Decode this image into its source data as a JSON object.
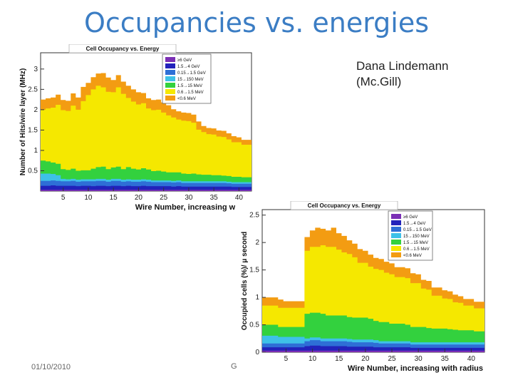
{
  "slide": {
    "title": "Occupancies vs. energies",
    "author_line1": "Dana Lindemann",
    "author_line2": "(Mc.Gill)",
    "footer_date": "01/10/2010",
    "footer_mid": "G"
  },
  "chart_data": [
    {
      "type": "area",
      "stacked": true,
      "title": "Cell Occupancy vs. Energy",
      "xlabel": "Wire Number, increasing with r",
      "ylabel": "Number of Hits/wire layer (MHz)",
      "xlim": [
        0.5,
        42.5
      ],
      "ylim": [
        0,
        3.4
      ],
      "xticks": [
        5,
        10,
        15,
        20,
        25,
        30,
        35,
        40
      ],
      "yticks": [
        0.5,
        1,
        1.5,
        2,
        2.5,
        3
      ],
      "legend": "top-center",
      "x": [
        1,
        2,
        3,
        4,
        5,
        6,
        7,
        8,
        9,
        10,
        11,
        12,
        13,
        14,
        15,
        16,
        17,
        18,
        19,
        20,
        21,
        22,
        23,
        24,
        25,
        26,
        27,
        28,
        29,
        30,
        31,
        32,
        33,
        34,
        35,
        36,
        37,
        38,
        39,
        40,
        41,
        42
      ],
      "series": [
        {
          "name": "≥6 GeV",
          "color": "#7b2fb5",
          "values": [
            0.03,
            0.03,
            0.03,
            0.03,
            0.03,
            0.03,
            0.03,
            0.03,
            0.03,
            0.03,
            0.03,
            0.03,
            0.03,
            0.03,
            0.03,
            0.03,
            0.03,
            0.03,
            0.03,
            0.03,
            0.03,
            0.03,
            0.03,
            0.03,
            0.03,
            0.03,
            0.03,
            0.03,
            0.03,
            0.03,
            0.03,
            0.03,
            0.03,
            0.03,
            0.03,
            0.03,
            0.03,
            0.03,
            0.03,
            0.03,
            0.03,
            0.03
          ]
        },
        {
          "name": "1.5→4 GeV",
          "color": "#2222bb",
          "values": [
            0.1,
            0.1,
            0.11,
            0.1,
            0.1,
            0.1,
            0.1,
            0.09,
            0.1,
            0.1,
            0.09,
            0.1,
            0.1,
            0.09,
            0.1,
            0.1,
            0.09,
            0.1,
            0.09,
            0.09,
            0.1,
            0.09,
            0.09,
            0.09,
            0.09,
            0.09,
            0.08,
            0.09,
            0.08,
            0.08,
            0.08,
            0.08,
            0.08,
            0.08,
            0.08,
            0.08,
            0.08,
            0.08,
            0.07,
            0.07,
            0.07,
            0.07
          ]
        },
        {
          "name": "0.15→1.5 GeV",
          "color": "#2e6fd6",
          "values": [
            0.12,
            0.12,
            0.12,
            0.12,
            0.11,
            0.11,
            0.12,
            0.11,
            0.11,
            0.11,
            0.12,
            0.12,
            0.12,
            0.11,
            0.12,
            0.12,
            0.11,
            0.11,
            0.11,
            0.11,
            0.11,
            0.11,
            0.1,
            0.1,
            0.1,
            0.1,
            0.1,
            0.1,
            0.09,
            0.09,
            0.09,
            0.09,
            0.09,
            0.09,
            0.09,
            0.09,
            0.09,
            0.08,
            0.08,
            0.08,
            0.08,
            0.08
          ]
        },
        {
          "name": "15→150 MeV",
          "color": "#3ec1e8",
          "values": [
            0.18,
            0.18,
            0.16,
            0.14,
            0.06,
            0.05,
            0.05,
            0.05,
            0.05,
            0.05,
            0.05,
            0.05,
            0.05,
            0.05,
            0.05,
            0.05,
            0.05,
            0.05,
            0.05,
            0.05,
            0.05,
            0.05,
            0.04,
            0.04,
            0.04,
            0.04,
            0.04,
            0.04,
            0.04,
            0.04,
            0.04,
            0.04,
            0.04,
            0.04,
            0.04,
            0.04,
            0.04,
            0.04,
            0.04,
            0.04,
            0.04,
            0.04
          ]
        },
        {
          "name": "1.5→15 MeV",
          "color": "#33d13e",
          "values": [
            0.32,
            0.3,
            0.28,
            0.28,
            0.24,
            0.23,
            0.25,
            0.22,
            0.22,
            0.22,
            0.26,
            0.29,
            0.3,
            0.26,
            0.28,
            0.3,
            0.26,
            0.3,
            0.27,
            0.25,
            0.27,
            0.25,
            0.23,
            0.24,
            0.22,
            0.2,
            0.21,
            0.2,
            0.19,
            0.18,
            0.19,
            0.17,
            0.16,
            0.16,
            0.15,
            0.15,
            0.14,
            0.14,
            0.13,
            0.13,
            0.12,
            0.12
          ]
        },
        {
          "name": "0.6→1.5 MeV",
          "color": "#f5e800",
          "values": [
            1.25,
            1.3,
            1.35,
            1.45,
            1.45,
            1.45,
            1.55,
            1.5,
            1.7,
            1.85,
            1.95,
            2.0,
            1.95,
            1.9,
            1.85,
            1.95,
            1.85,
            1.7,
            1.65,
            1.6,
            1.6,
            1.5,
            1.5,
            1.5,
            1.45,
            1.4,
            1.35,
            1.3,
            1.3,
            1.3,
            1.25,
            1.1,
            1.05,
            1.0,
            1.0,
            0.95,
            0.95,
            0.9,
            0.85,
            0.85,
            0.8,
            0.8
          ]
        },
        {
          "name": "<0.6 MeV",
          "color": "#f39c12",
          "values": [
            0.25,
            0.25,
            0.25,
            0.25,
            0.25,
            0.25,
            0.3,
            0.3,
            0.35,
            0.3,
            0.3,
            0.3,
            0.35,
            0.35,
            0.3,
            0.3,
            0.3,
            0.3,
            0.3,
            0.3,
            0.25,
            0.25,
            0.25,
            0.25,
            0.25,
            0.25,
            0.2,
            0.2,
            0.2,
            0.2,
            0.2,
            0.2,
            0.15,
            0.15,
            0.15,
            0.15,
            0.15,
            0.15,
            0.15,
            0.12,
            0.12,
            0.12
          ]
        }
      ]
    },
    {
      "type": "area",
      "stacked": true,
      "title": "Cell Occupancy vs. Energy",
      "xlabel": "Wire Number, increasing with radius",
      "ylabel": "Occupied cells (%)/ μ second",
      "xlim": [
        0.5,
        42.5
      ],
      "ylim": [
        0,
        2.6
      ],
      "xticks": [
        5,
        10,
        15,
        20,
        25,
        30,
        35,
        40
      ],
      "yticks": [
        0,
        0.5,
        1,
        1.5,
        2,
        2.5
      ],
      "legend": "top-right",
      "x": [
        1,
        2,
        3,
        4,
        5,
        6,
        7,
        8,
        9,
        10,
        11,
        12,
        13,
        14,
        15,
        16,
        17,
        18,
        19,
        20,
        21,
        22,
        23,
        24,
        25,
        26,
        27,
        28,
        29,
        30,
        31,
        32,
        33,
        34,
        35,
        36,
        37,
        38,
        39,
        40,
        41,
        42
      ],
      "series": [
        {
          "name": "≥6 GeV",
          "color": "#7b2fb5",
          "values": [
            0.03,
            0.03,
            0.03,
            0.03,
            0.03,
            0.03,
            0.03,
            0.03,
            0.03,
            0.03,
            0.03,
            0.03,
            0.03,
            0.03,
            0.03,
            0.03,
            0.03,
            0.03,
            0.03,
            0.03,
            0.03,
            0.03,
            0.03,
            0.03,
            0.03,
            0.03,
            0.03,
            0.03,
            0.03,
            0.03,
            0.03,
            0.03,
            0.03,
            0.03,
            0.03,
            0.03,
            0.03,
            0.03,
            0.03,
            0.03,
            0.03,
            0.03
          ]
        },
        {
          "name": "1.5→4 GeV",
          "color": "#2222bb",
          "values": [
            0.06,
            0.06,
            0.06,
            0.06,
            0.06,
            0.06,
            0.06,
            0.06,
            0.08,
            0.09,
            0.09,
            0.08,
            0.08,
            0.08,
            0.08,
            0.08,
            0.07,
            0.07,
            0.07,
            0.07,
            0.07,
            0.06,
            0.06,
            0.06,
            0.06,
            0.06,
            0.06,
            0.06,
            0.05,
            0.05,
            0.05,
            0.05,
            0.05,
            0.05,
            0.05,
            0.05,
            0.05,
            0.05,
            0.05,
            0.05,
            0.05,
            0.05
          ]
        },
        {
          "name": "0.15→1.5 GeV",
          "color": "#2e6fd6",
          "values": [
            0.07,
            0.07,
            0.07,
            0.07,
            0.07,
            0.07,
            0.07,
            0.07,
            0.09,
            0.1,
            0.1,
            0.09,
            0.09,
            0.09,
            0.09,
            0.09,
            0.09,
            0.08,
            0.08,
            0.08,
            0.08,
            0.08,
            0.07,
            0.07,
            0.07,
            0.07,
            0.07,
            0.07,
            0.06,
            0.06,
            0.06,
            0.06,
            0.06,
            0.06,
            0.06,
            0.06,
            0.06,
            0.06,
            0.06,
            0.06,
            0.06,
            0.06
          ]
        },
        {
          "name": "15→150 MeV",
          "color": "#3ec1e8",
          "values": [
            0.14,
            0.14,
            0.14,
            0.12,
            0.12,
            0.12,
            0.12,
            0.12,
            0.05,
            0.05,
            0.05,
            0.05,
            0.05,
            0.05,
            0.05,
            0.05,
            0.05,
            0.05,
            0.05,
            0.05,
            0.05,
            0.05,
            0.04,
            0.04,
            0.04,
            0.04,
            0.04,
            0.04,
            0.04,
            0.04,
            0.04,
            0.04,
            0.04,
            0.04,
            0.04,
            0.04,
            0.04,
            0.04,
            0.04,
            0.04,
            0.04,
            0.04
          ]
        },
        {
          "name": "1.5→15 MeV",
          "color": "#33d13e",
          "values": [
            0.2,
            0.2,
            0.2,
            0.18,
            0.18,
            0.18,
            0.18,
            0.18,
            0.45,
            0.45,
            0.45,
            0.45,
            0.42,
            0.42,
            0.42,
            0.42,
            0.4,
            0.4,
            0.4,
            0.4,
            0.38,
            0.35,
            0.35,
            0.35,
            0.32,
            0.32,
            0.32,
            0.3,
            0.28,
            0.28,
            0.28,
            0.26,
            0.25,
            0.25,
            0.25,
            0.24,
            0.23,
            0.22,
            0.22,
            0.22,
            0.2,
            0.2
          ]
        },
        {
          "name": "0.6→1.5 MeV",
          "color": "#f5e800",
          "values": [
            0.35,
            0.35,
            0.35,
            0.35,
            0.35,
            0.35,
            0.35,
            0.35,
            1.15,
            1.2,
            1.2,
            1.25,
            1.25,
            1.25,
            1.2,
            1.15,
            1.15,
            1.1,
            1.0,
            1.0,
            0.95,
            0.95,
            0.95,
            0.9,
            0.9,
            0.85,
            0.85,
            0.85,
            0.8,
            0.8,
            0.7,
            0.7,
            0.6,
            0.6,
            0.55,
            0.55,
            0.5,
            0.5,
            0.45,
            0.45,
            0.42,
            0.42
          ]
        },
        {
          "name": "<0.6 MeV",
          "color": "#f39c12",
          "values": [
            0.15,
            0.15,
            0.15,
            0.15,
            0.12,
            0.12,
            0.12,
            0.12,
            0.25,
            0.3,
            0.35,
            0.3,
            0.3,
            0.35,
            0.3,
            0.3,
            0.25,
            0.25,
            0.25,
            0.22,
            0.22,
            0.2,
            0.2,
            0.2,
            0.2,
            0.18,
            0.18,
            0.18,
            0.18,
            0.16,
            0.16,
            0.16,
            0.15,
            0.15,
            0.15,
            0.14,
            0.14,
            0.12,
            0.12,
            0.12,
            0.12,
            0.12
          ]
        }
      ]
    }
  ]
}
